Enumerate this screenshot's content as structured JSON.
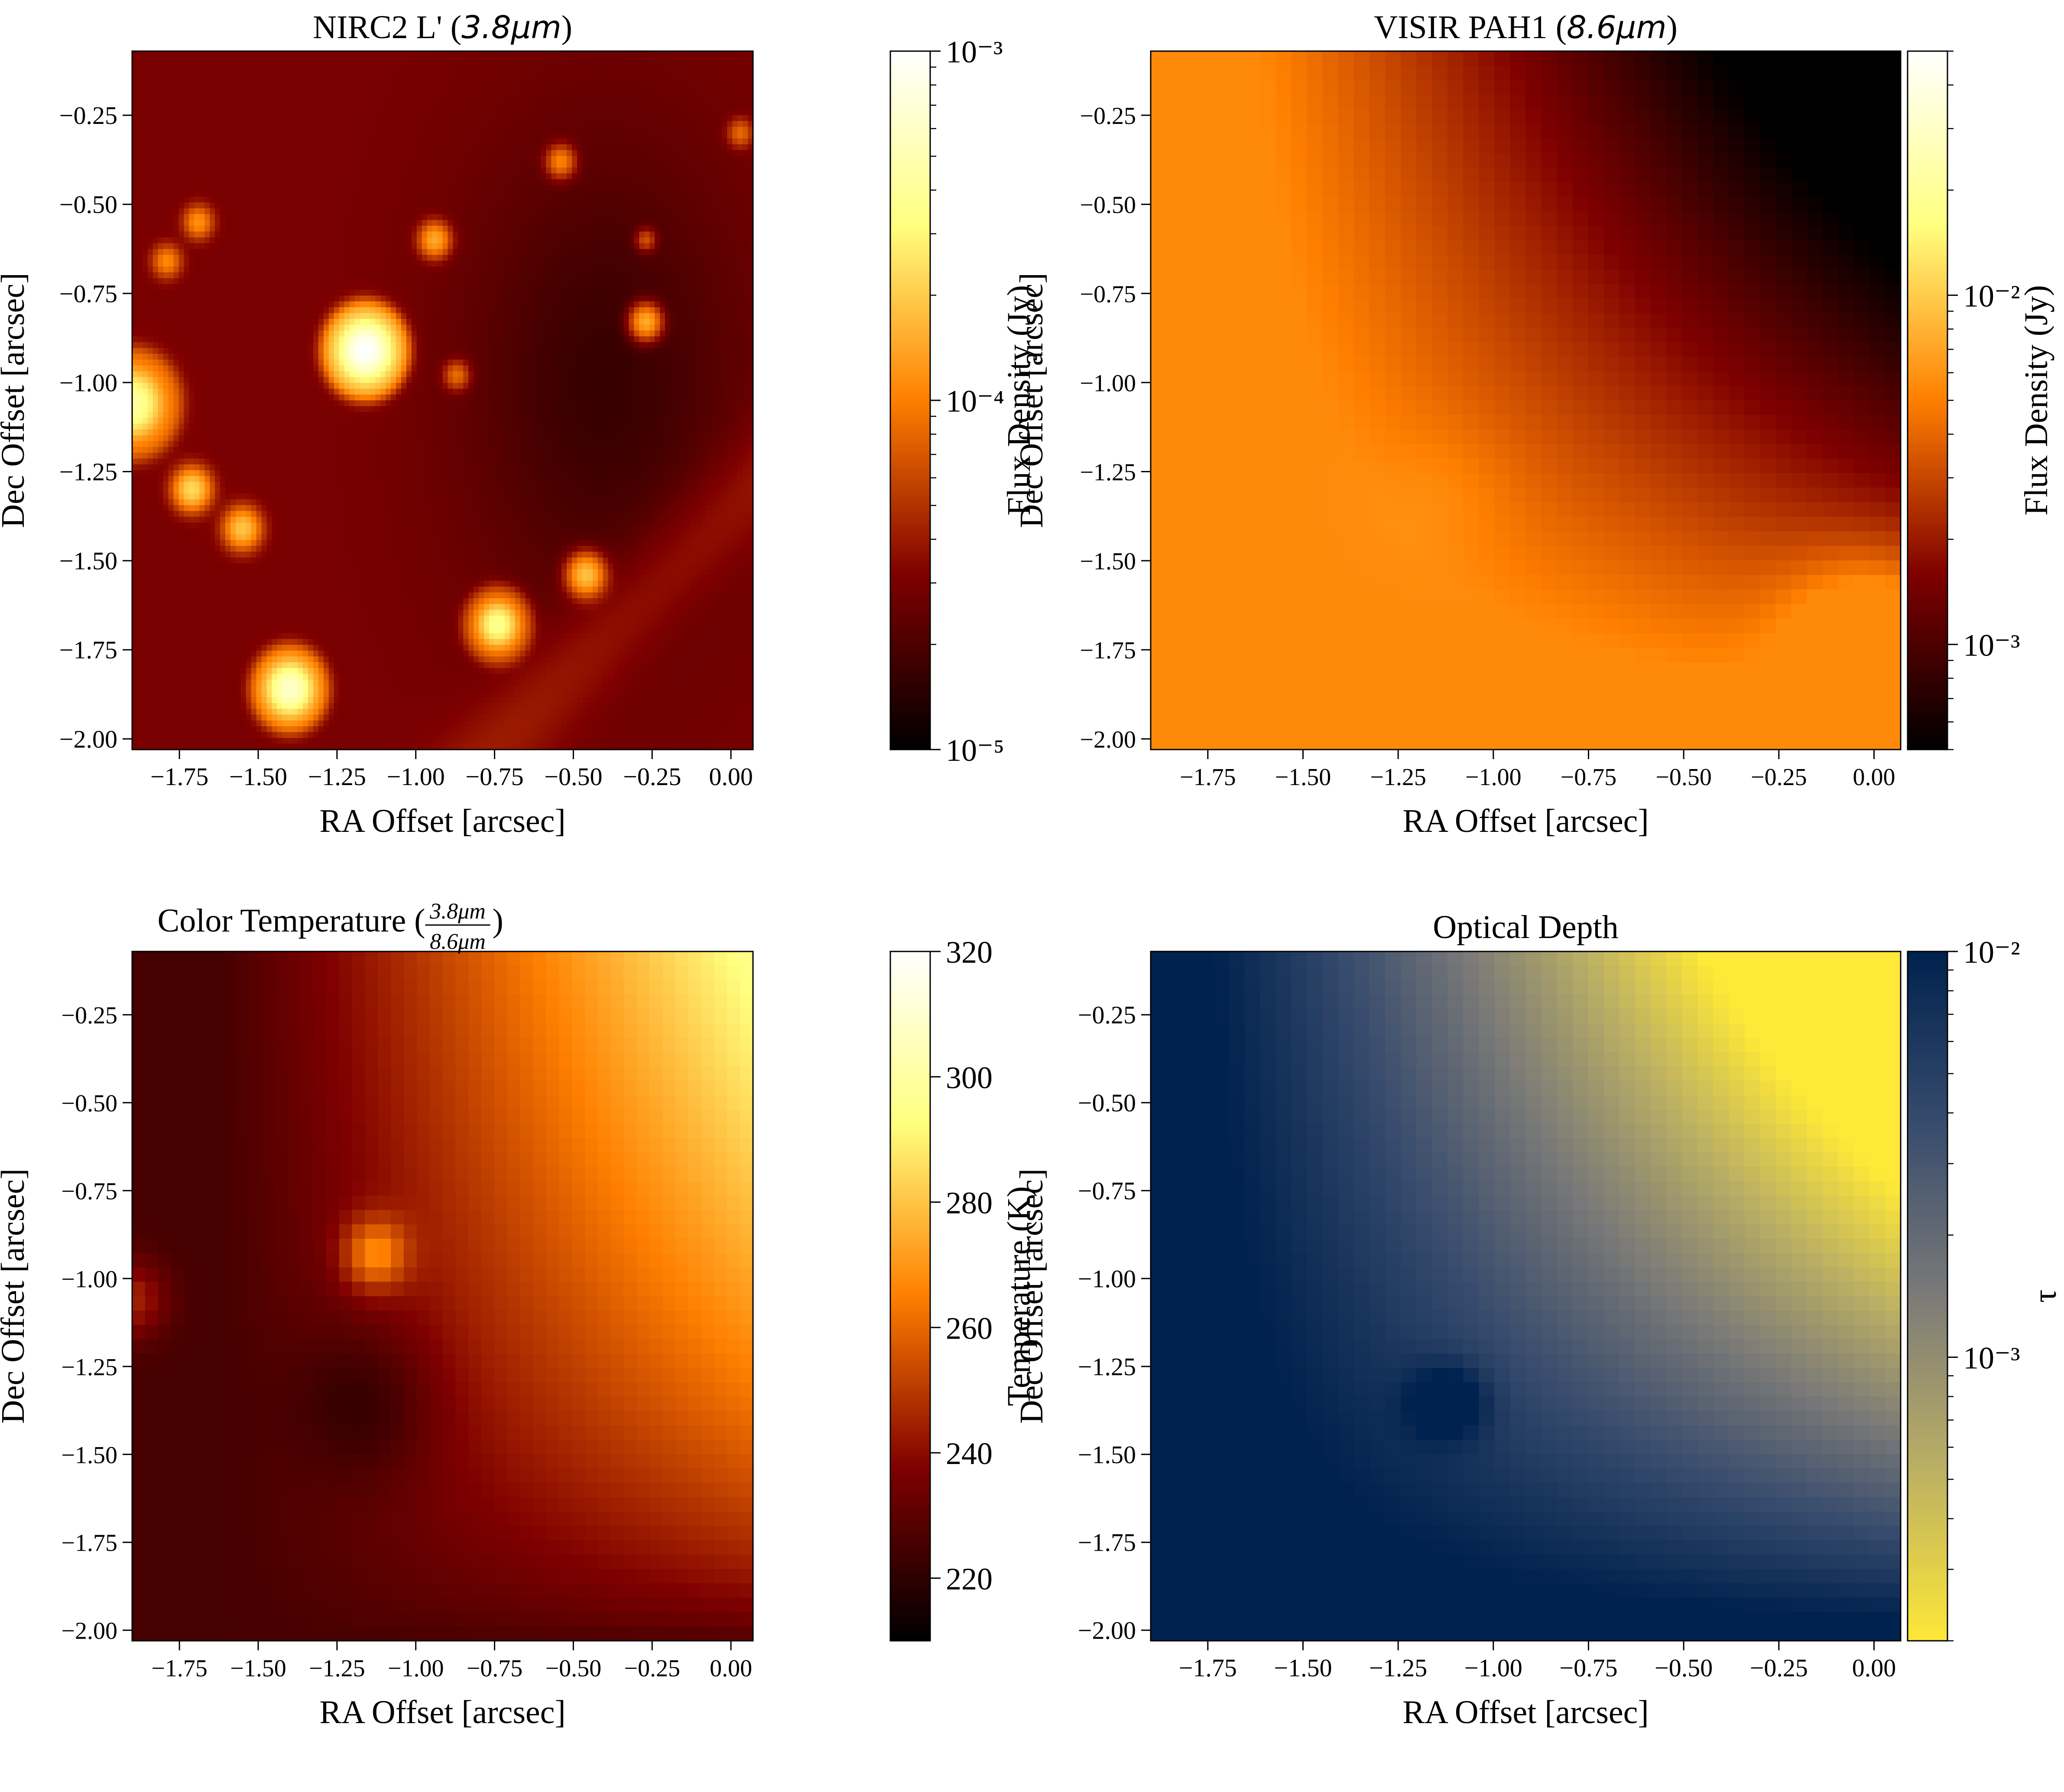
{
  "figure": {
    "panels": [
      {
        "title": "NIRC2 L' (3.8μm)",
        "title_parts": {
          "text": "NIRC2 L' (",
          "math": "3.8μm",
          "close": ")"
        },
        "colorbar": {
          "label": "Flux Density (Jy)",
          "scale": "log",
          "range": [
            1e-05,
            0.001
          ],
          "colormap": "afmhot",
          "tick_labels": [
            "10⁻⁵",
            "10⁻⁴",
            "10⁻³"
          ]
        }
      },
      {
        "title": "VISIR PAH1 (8.6μm)",
        "title_parts": {
          "text": "VISIR PAH1 (",
          "math": "8.6μm",
          "close": ")"
        },
        "colorbar": {
          "label": "Flux Density (Jy)",
          "scale": "log",
          "range": [
            0.0005,
            0.05
          ],
          "colormap": "afmhot",
          "tick_labels": [
            "10⁻³",
            "10⁻²"
          ]
        }
      },
      {
        "title": "Color Temperature (3.8μm / 8.6μm)",
        "title_parts": {
          "text": "Color Temperature (",
          "num": "3.8μm",
          "den": "8.6μm",
          "close": ")"
        },
        "colorbar": {
          "label": "Temperature (K)",
          "scale": "linear",
          "range": [
            210,
            320
          ],
          "colormap": "afmhot",
          "tick_labels": [
            "220",
            "240",
            "260",
            "280",
            "300",
            "320"
          ]
        }
      },
      {
        "title": "Optical Depth",
        "colorbar": {
          "label": "τ",
          "scale": "log",
          "range": [
            0.0002,
            0.01
          ],
          "colormap": "cividis_r",
          "tick_labels": [
            "10⁻³",
            "10⁻²"
          ]
        }
      }
    ],
    "axes": {
      "xlabel": "RA Offset [arcsec]",
      "ylabel": "Dec Offset [arcsec]",
      "xlim": [
        -1.9,
        0.07
      ],
      "ylim": [
        -2.03,
        -0.07
      ],
      "x_tick_labels": [
        "−1.75",
        "−1.50",
        "−1.25",
        "−1.00",
        "−0.75",
        "−0.50",
        "−0.25",
        "0.00"
      ],
      "y_tick_labels": [
        "−0.25",
        "−0.50",
        "−0.75",
        "−1.00",
        "−1.25",
        "−1.50",
        "−1.75",
        "−2.00"
      ]
    }
  },
  "chart_data": [
    {
      "type": "heatmap",
      "title": "NIRC2 L' (3.8μm)",
      "xlabel": "RA Offset [arcsec]",
      "ylabel": "Dec Offset [arcsec]",
      "xlim": [
        -1.9,
        0.07
      ],
      "ylim": [
        -2.03,
        -0.07
      ],
      "x_ticks": [
        -1.75,
        -1.5,
        -1.25,
        -1.0,
        -0.75,
        -0.5,
        -0.25,
        0.0
      ],
      "y_ticks": [
        -0.25,
        -0.5,
        -0.75,
        -1.0,
        -1.25,
        -1.5,
        -1.75,
        -2.0
      ],
      "colorbar": {
        "label": "Flux Density (Jy)",
        "scale": "log",
        "range": [
          1e-05,
          0.001
        ],
        "ticks": [
          1e-05,
          0.0001,
          0.001
        ]
      },
      "colormap": "afmhot",
      "background_level": 3e-05,
      "point_sources": [
        {
          "x": -1.16,
          "y": -0.91,
          "peak": 0.001,
          "sigma": 0.05,
          "ring": true
        },
        {
          "x": -1.4,
          "y": -1.86,
          "peak": 0.0006,
          "sigma": 0.045,
          "ring": true
        },
        {
          "x": -1.9,
          "y": -1.06,
          "peak": 0.0004,
          "sigma": 0.06,
          "ring": true
        },
        {
          "x": -0.74,
          "y": -1.68,
          "peak": 0.00035,
          "sigma": 0.04,
          "ring": true
        },
        {
          "x": -1.71,
          "y": -1.3,
          "peak": 0.0002,
          "sigma": 0.035,
          "ring": false
        },
        {
          "x": -1.55,
          "y": -1.41,
          "peak": 0.00016,
          "sigma": 0.035,
          "ring": false
        },
        {
          "x": -0.46,
          "y": -1.54,
          "peak": 0.00016,
          "sigma": 0.035,
          "ring": false
        },
        {
          "x": -0.27,
          "y": -0.83,
          "peak": 0.00013,
          "sigma": 0.03,
          "ring": false
        },
        {
          "x": -0.94,
          "y": -0.6,
          "peak": 0.00012,
          "sigma": 0.03,
          "ring": false
        },
        {
          "x": -1.69,
          "y": -0.55,
          "peak": 9e-05,
          "sigma": 0.028,
          "ring": false
        },
        {
          "x": -1.79,
          "y": -0.66,
          "peak": 8e-05,
          "sigma": 0.028,
          "ring": false
        },
        {
          "x": -0.54,
          "y": -0.38,
          "peak": 8e-05,
          "sigma": 0.028,
          "ring": false
        },
        {
          "x": -0.87,
          "y": -0.98,
          "peak": 6e-05,
          "sigma": 0.025,
          "ring": false
        },
        {
          "x": 0.03,
          "y": -0.3,
          "peak": 5.5e-05,
          "sigma": 0.025,
          "ring": false
        },
        {
          "x": -0.27,
          "y": -0.6,
          "peak": 4.5e-05,
          "sigma": 0.02,
          "ring": false
        }
      ]
    },
    {
      "type": "heatmap",
      "title": "VISIR PAH1 (8.6μm)",
      "xlabel": "RA Offset [arcsec]",
      "ylabel": "Dec Offset [arcsec]",
      "xlim": [
        -1.9,
        0.07
      ],
      "ylim": [
        -2.03,
        -0.07
      ],
      "x_ticks": [
        -1.75,
        -1.5,
        -1.25,
        -1.0,
        -0.75,
        -0.5,
        -0.25,
        0.0
      ],
      "y_ticks": [
        -0.25,
        -0.5,
        -0.75,
        -1.0,
        -1.25,
        -1.5,
        -1.75,
        -2.0
      ],
      "colorbar": {
        "label": "Flux Density (Jy)",
        "scale": "log",
        "range": [
          0.0005,
          0.05
        ],
        "ticks": [
          0.001,
          0.01
        ]
      },
      "colormap": "afmhot",
      "pixelated": true,
      "description_of_structure": "bright diffuse emission in left and bottom (~5e-3 Jy), darkest in upper-right corner (~5e-4 Jy)"
    },
    {
      "type": "heatmap",
      "title": "Color Temperature (3.8μm / 8.6μm)",
      "xlabel": "RA Offset [arcsec]",
      "ylabel": "Dec Offset [arcsec]",
      "xlim": [
        -1.9,
        0.07
      ],
      "ylim": [
        -2.03,
        -0.07
      ],
      "x_ticks": [
        -1.75,
        -1.5,
        -1.25,
        -1.0,
        -0.75,
        -0.5,
        -0.25,
        0.0
      ],
      "y_ticks": [
        -0.25,
        -0.5,
        -0.75,
        -1.0,
        -1.25,
        -1.5,
        -1.75,
        -2.0
      ],
      "colorbar": {
        "label": "Temperature (K)",
        "scale": "linear",
        "range": [
          210,
          320
        ],
        "ticks": [
          220,
          240,
          260,
          280,
          300,
          320
        ]
      },
      "colormap": "afmhot",
      "pixelated": true
    },
    {
      "type": "heatmap",
      "title": "Optical Depth",
      "xlabel": "RA Offset [arcsec]",
      "ylabel": "Dec Offset [arcsec]",
      "xlim": [
        -1.9,
        0.07
      ],
      "ylim": [
        -2.03,
        -0.07
      ],
      "x_ticks": [
        -1.75,
        -1.5,
        -1.25,
        -1.0,
        -0.75,
        -0.5,
        -0.25,
        0.0
      ],
      "y_ticks": [
        -0.25,
        -0.5,
        -0.75,
        -1.0,
        -1.25,
        -1.5,
        -1.75,
        -2.0
      ],
      "colorbar": {
        "label": "τ",
        "scale": "log",
        "range": [
          0.0002,
          0.01
        ],
        "ticks": [
          0.001,
          0.01
        ]
      },
      "colormap": "cividis_r",
      "pixelated": true
    }
  ]
}
